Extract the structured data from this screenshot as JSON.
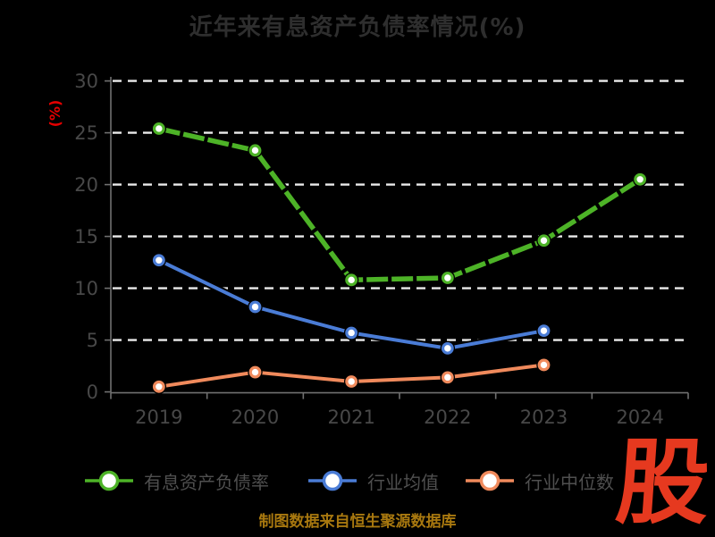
{
  "page": {
    "background": "#000000"
  },
  "chart_data": {
    "type": "line",
    "title": "近年来有息资产负债率情况(%)",
    "ylabel": "(%)",
    "categories": [
      "2019",
      "2020",
      "2021",
      "2022",
      "2023",
      "2024"
    ],
    "ylim": [
      0,
      30
    ],
    "yticks": [
      0,
      5,
      10,
      15,
      20,
      25,
      30
    ],
    "grid": "horizontal-white-dashed",
    "legend_position": "bottom",
    "series": [
      {
        "name": "有息资产负债率",
        "color": "#4db327",
        "line_style": "dashed",
        "values": [
          25.4,
          23.3,
          10.8,
          11.0,
          14.6,
          20.5
        ]
      },
      {
        "name": "行业均值",
        "color": "#4a7cd6",
        "line_style": "solid",
        "values": [
          12.7,
          8.2,
          5.7,
          4.2,
          5.9,
          null
        ]
      },
      {
        "name": "行业中位数",
        "color": "#f08a5c",
        "line_style": "solid",
        "values": [
          0.5,
          1.9,
          1.0,
          1.4,
          2.6,
          null
        ]
      }
    ]
  },
  "footer": {
    "source": "制图数据来自恒生聚源数据库"
  },
  "logo": {
    "text": "股"
  },
  "style": {
    "title_color": "#2e2e2e",
    "ylabel_color": "#e60000",
    "tick_label_color": "#484848",
    "legend_label_color": "#4f4f4f",
    "grid_color": "#ebebeb",
    "axis_color": "#707070",
    "marker_fill": "#ffffff",
    "footer_color": "#a8780f",
    "logo_color": "#e6391f"
  }
}
